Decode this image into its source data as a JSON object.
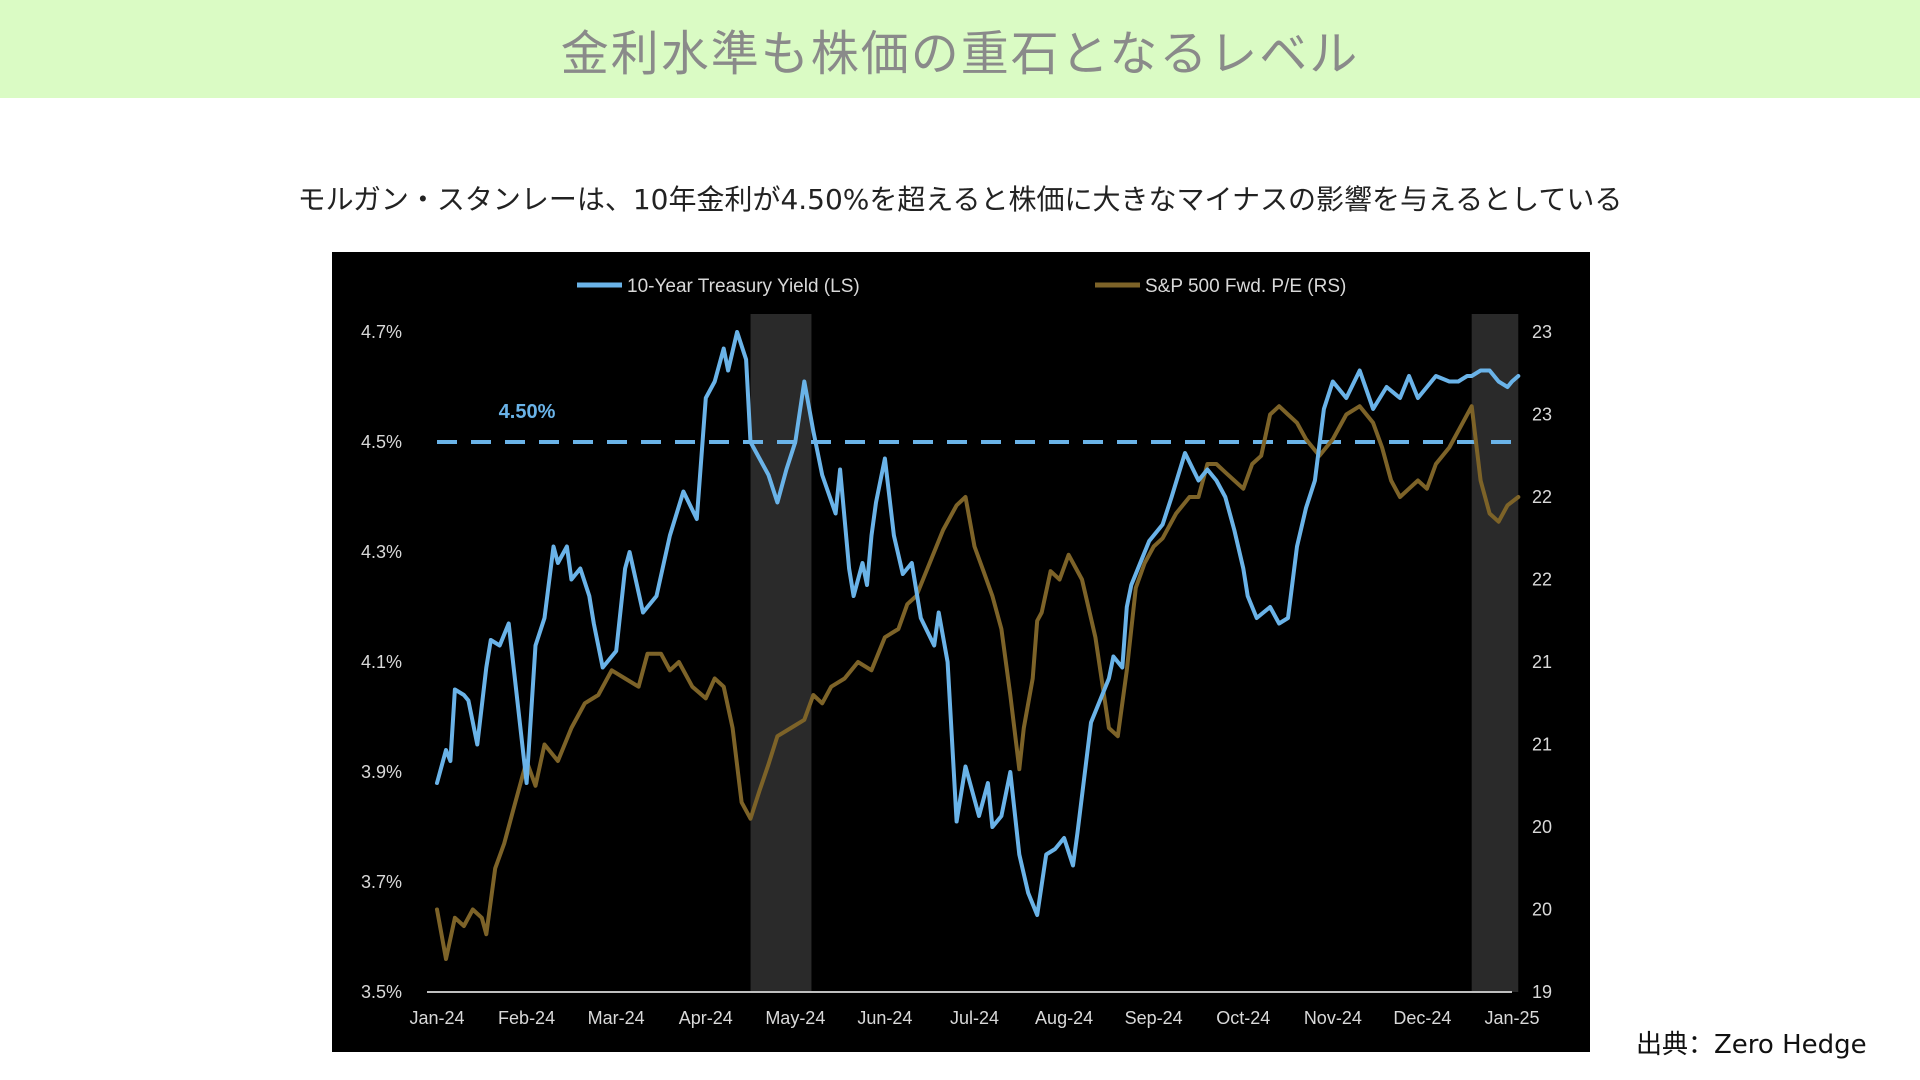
{
  "page": {
    "title": "金利水準も株価の重石となるレベル",
    "subtitle": "モルガン・スタンレーは、10年金利が4.50%を超えると株価に大きなマイナスの影響を与えるとしている",
    "source": "出典：Zero Hedge"
  },
  "colors": {
    "banner": "#dafbc4",
    "title": "#8a8a8a",
    "chart_bg": "#000000",
    "yield_line": "#6ab3e8",
    "pe_line": "#7d6328",
    "shade": "#2a2a2a",
    "axis_text": "#d9d9d9"
  },
  "chart_data": {
    "type": "line",
    "legend_position": "top",
    "threshold": {
      "value": 4.5,
      "label": "4.50%"
    },
    "x_labels": [
      "Jan-24",
      "Feb-24",
      "Mar-24",
      "Apr-24",
      "May-24",
      "Jun-24",
      "Jul-24",
      "Aug-24",
      "Sep-24",
      "Oct-24",
      "Nov-24",
      "Dec-24",
      "Jan-25"
    ],
    "left_axis": {
      "ticks": [
        "3.5%",
        "3.7%",
        "3.9%",
        "4.1%",
        "4.3%",
        "4.5%",
        "4.7%"
      ],
      "range": [
        3.5,
        4.7
      ]
    },
    "right_axis": {
      "ticks": [
        "19",
        "20",
        "20",
        "21",
        "21",
        "22",
        "22",
        "23",
        "23"
      ],
      "range": [
        19,
        23
      ]
    },
    "shaded_ranges": [
      [
        3.5,
        4.18
      ],
      [
        11.55,
        12.07
      ]
    ],
    "series": [
      {
        "name": "10-Year Treasury Yield (LS)",
        "axis": "left",
        "x": [
          0,
          0.1,
          0.15,
          0.2,
          0.3,
          0.35,
          0.45,
          0.55,
          0.6,
          0.7,
          0.8,
          1.0,
          1.1,
          1.2,
          1.3,
          1.35,
          1.45,
          1.5,
          1.6,
          1.7,
          1.75,
          1.85,
          2.0,
          2.1,
          2.15,
          2.3,
          2.45,
          2.6,
          2.75,
          2.9,
          3.0,
          3.1,
          3.2,
          3.25,
          3.35,
          3.45,
          3.5,
          3.6,
          3.7,
          3.8,
          3.9,
          4.0,
          4.1,
          4.2,
          4.3,
          4.45,
          4.5,
          4.6,
          4.65,
          4.75,
          4.8,
          4.85,
          4.9,
          5.0,
          5.1,
          5.2,
          5.3,
          5.4,
          5.55,
          5.6,
          5.7,
          5.8,
          5.9,
          6.05,
          6.15,
          6.2,
          6.3,
          6.4,
          6.5,
          6.6,
          6.7,
          6.8,
          6.9,
          7.0,
          7.1,
          7.15,
          7.3,
          7.5,
          7.55,
          7.65,
          7.7,
          7.75,
          7.85,
          7.95,
          8.1,
          8.2,
          8.35,
          8.5,
          8.6,
          8.7,
          8.8,
          8.9,
          9.0,
          9.05,
          9.15,
          9.3,
          9.4,
          9.5,
          9.6,
          9.7,
          9.8,
          9.9,
          10.0,
          10.15,
          10.3,
          10.45,
          10.6,
          10.75,
          10.85,
          10.95,
          11.05,
          11.15,
          11.3,
          11.4,
          11.5,
          11.55,
          11.65,
          11.75,
          11.85,
          11.95,
          12.0,
          12.07
        ],
        "y": [
          3.88,
          3.94,
          3.92,
          4.05,
          4.04,
          4.03,
          3.95,
          4.09,
          4.14,
          4.13,
          4.17,
          3.88,
          4.13,
          4.18,
          4.31,
          4.28,
          4.31,
          4.25,
          4.27,
          4.22,
          4.17,
          4.09,
          4.12,
          4.27,
          4.3,
          4.19,
          4.22,
          4.33,
          4.41,
          4.36,
          4.58,
          4.61,
          4.67,
          4.63,
          4.7,
          4.65,
          4.5,
          4.47,
          4.44,
          4.39,
          4.45,
          4.5,
          4.61,
          4.52,
          4.44,
          4.37,
          4.45,
          4.27,
          4.22,
          4.28,
          4.24,
          4.33,
          4.39,
          4.47,
          4.33,
          4.26,
          4.28,
          4.18,
          4.13,
          4.19,
          4.1,
          3.81,
          3.91,
          3.82,
          3.88,
          3.8,
          3.82,
          3.9,
          3.75,
          3.68,
          3.64,
          3.75,
          3.76,
          3.78,
          3.73,
          3.79,
          3.99,
          4.07,
          4.11,
          4.09,
          4.2,
          4.24,
          4.28,
          4.32,
          4.35,
          4.4,
          4.48,
          4.43,
          4.45,
          4.43,
          4.4,
          4.34,
          4.27,
          4.22,
          4.18,
          4.2,
          4.17,
          4.18,
          4.31,
          4.38,
          4.43,
          4.56,
          4.61,
          4.58,
          4.63,
          4.56,
          4.6,
          4.58,
          4.62,
          4.58,
          4.6,
          4.62,
          4.61,
          4.61,
          4.62,
          4.62,
          4.63,
          4.63,
          4.61,
          4.6,
          4.61,
          4.62
        ]
      },
      {
        "name": "S&P 500 Fwd. P/E (RS)",
        "axis": "right",
        "x": [
          0,
          0.1,
          0.2,
          0.3,
          0.4,
          0.5,
          0.55,
          0.65,
          0.75,
          0.85,
          0.95,
          1.0,
          1.1,
          1.2,
          1.35,
          1.5,
          1.65,
          1.8,
          1.95,
          2.1,
          2.25,
          2.35,
          2.5,
          2.6,
          2.7,
          2.85,
          3.0,
          3.1,
          3.2,
          3.3,
          3.4,
          3.5,
          3.6,
          3.7,
          3.8,
          3.95,
          4.1,
          4.2,
          4.3,
          4.4,
          4.55,
          4.7,
          4.85,
          5.0,
          5.15,
          5.25,
          5.35,
          5.5,
          5.65,
          5.8,
          5.9,
          6.0,
          6.1,
          6.2,
          6.3,
          6.4,
          6.5,
          6.55,
          6.65,
          6.7,
          6.75,
          6.85,
          6.95,
          7.05,
          7.2,
          7.35,
          7.5,
          7.6,
          7.7,
          7.8,
          7.9,
          8.0,
          8.1,
          8.25,
          8.4,
          8.5,
          8.6,
          8.7,
          8.8,
          8.9,
          9.0,
          9.1,
          9.2,
          9.3,
          9.4,
          9.5,
          9.6,
          9.7,
          9.85,
          10.0,
          10.15,
          10.3,
          10.45,
          10.55,
          10.65,
          10.75,
          10.85,
          10.95,
          11.05,
          11.15,
          11.3,
          11.45,
          11.55,
          11.65,
          11.75,
          11.85,
          11.95,
          12.07
        ],
        "y": [
          19.5,
          19.2,
          19.45,
          19.4,
          19.5,
          19.45,
          19.35,
          19.75,
          19.9,
          20.1,
          20.3,
          20.4,
          20.25,
          20.5,
          20.4,
          20.6,
          20.75,
          20.8,
          20.95,
          20.9,
          20.85,
          21.05,
          21.05,
          20.95,
          21.0,
          20.85,
          20.78,
          20.9,
          20.85,
          20.6,
          20.15,
          20.05,
          20.22,
          20.38,
          20.55,
          20.6,
          20.65,
          20.8,
          20.75,
          20.85,
          20.9,
          21.0,
          20.95,
          21.15,
          21.2,
          21.35,
          21.4,
          21.6,
          21.8,
          21.95,
          22.0,
          21.7,
          21.55,
          21.4,
          21.2,
          20.8,
          20.35,
          20.6,
          20.9,
          21.25,
          21.3,
          21.55,
          21.5,
          21.65,
          21.5,
          21.15,
          20.6,
          20.55,
          20.95,
          21.45,
          21.6,
          21.7,
          21.75,
          21.9,
          22.0,
          22.0,
          22.2,
          22.2,
          22.15,
          22.1,
          22.05,
          22.2,
          22.25,
          22.5,
          22.55,
          22.5,
          22.45,
          22.35,
          22.25,
          22.35,
          22.5,
          22.55,
          22.45,
          22.3,
          22.1,
          22.0,
          22.05,
          22.1,
          22.05,
          22.2,
          22.3,
          22.45,
          22.55,
          22.1,
          21.9,
          21.85,
          21.95,
          22.0
        ]
      }
    ]
  }
}
